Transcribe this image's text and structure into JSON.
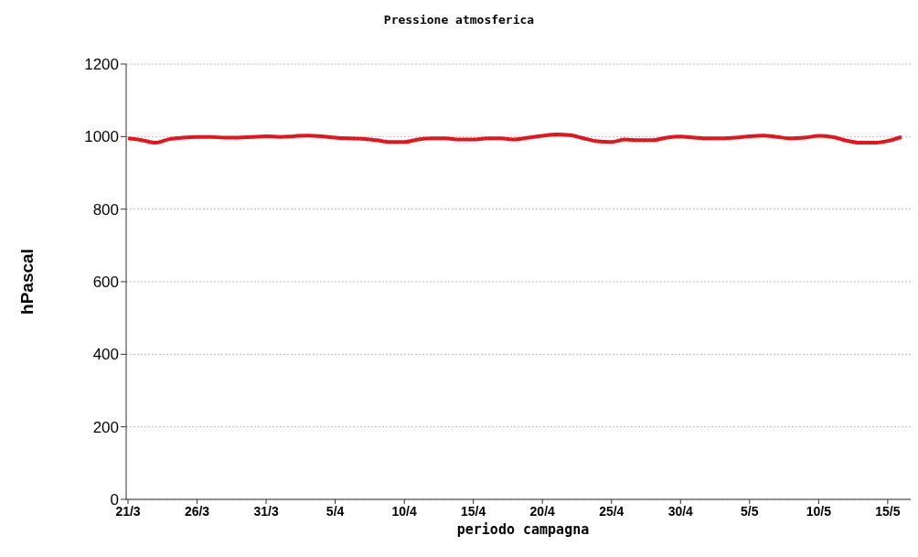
{
  "chart_data": {
    "type": "line",
    "title": "Pressione atmosferica",
    "xlabel": "periodo campagna",
    "ylabel": "hPascal",
    "categories": [
      "21/3",
      null,
      null,
      null,
      null,
      "26/3",
      null,
      null,
      null,
      null,
      "31/3",
      null,
      null,
      null,
      null,
      "5/4",
      null,
      null,
      null,
      null,
      "10/4",
      null,
      null,
      null,
      null,
      "15/4",
      null,
      null,
      null,
      null,
      "20/4",
      null,
      null,
      null,
      null,
      "25/4",
      null,
      null,
      null,
      null,
      "30/4",
      null,
      null,
      null,
      null,
      "5/5",
      null,
      null,
      null,
      null,
      "10/5",
      null,
      null,
      null,
      null,
      "15/5",
      null
    ],
    "series": [
      {
        "color": "#e8141c",
        "values": [
          995,
          990,
          983,
          993,
          997,
          999,
          999,
          997,
          997,
          999,
          1001,
          999,
          1001,
          1003,
          1001,
          997,
          995,
          994,
          990,
          985,
          985,
          992,
          995,
          995,
          992,
          992,
          995,
          995,
          992,
          997,
          1002,
          1006,
          1004,
          995,
          987,
          985,
          992,
          990,
          990,
          997,
          1000,
          997,
          995,
          995,
          997,
          1001,
          1003,
          999,
          995,
          997,
          1002,
          999,
          989,
          983,
          983,
          988,
          999
        ]
      }
    ],
    "ylim": [
      0,
      1200
    ],
    "yticks": [
      0,
      200,
      400,
      600,
      800,
      1000,
      1200
    ],
    "grid": "y",
    "marker": "none",
    "line_style": "solid"
  }
}
